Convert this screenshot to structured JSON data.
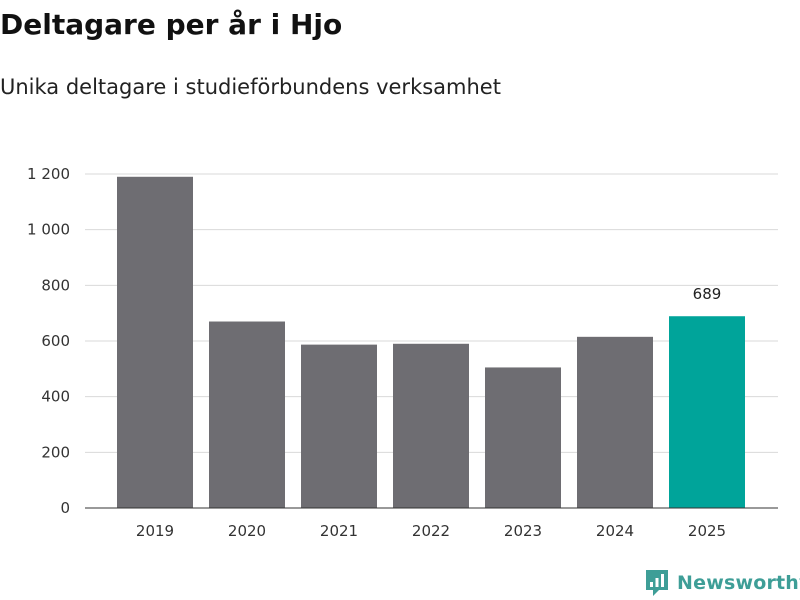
{
  "title": "Deltagare per år i Hjo",
  "subtitle": "Unika deltagare i studieförbundens verksamhet",
  "brand": {
    "name": "Newsworthy",
    "icon": "newsworthy-logo-icon"
  },
  "colors": {
    "bar": "#6e6d72",
    "highlight": "#00a49a",
    "grid": "#d9d9d9",
    "axis": "#333333",
    "brand": "#3e9e97"
  },
  "chart_data": {
    "type": "bar",
    "categories": [
      "2019",
      "2020",
      "2021",
      "2022",
      "2023",
      "2024",
      "2025"
    ],
    "values": [
      1190,
      670,
      587,
      590,
      505,
      615,
      689
    ],
    "highlight_index": 6,
    "data_labels": [
      {
        "index": 6,
        "text": "689"
      }
    ],
    "ylim": [
      0,
      1200
    ],
    "yticks": [
      0,
      200,
      400,
      600,
      800,
      1000,
      1200
    ],
    "ytick_labels": [
      "0",
      "200",
      "400",
      "600",
      "800",
      "1 000",
      "1 200"
    ],
    "grid": true,
    "legend": "none"
  }
}
